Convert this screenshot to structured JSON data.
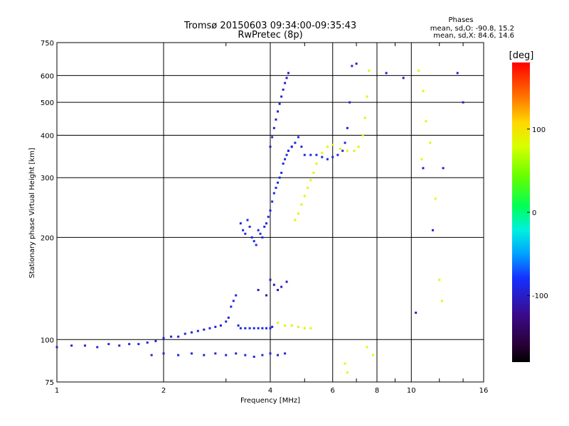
{
  "chart_data": {
    "type": "scatter",
    "title": "Tromsø 20150603 09:34:00-09:35:43",
    "subtitle": "RwPretec (8p)",
    "xlabel": "Frequency [MHz]",
    "ylabel": "Stationary phase Virtual Height [km]",
    "xscale": "log",
    "yscale": "log",
    "xlim": [
      1,
      16
    ],
    "ylim": [
      75,
      750
    ],
    "xticks": [
      1,
      2,
      4,
      6,
      8,
      10,
      16
    ],
    "xtick_labels": [
      "1",
      "2",
      "4",
      "6",
      "8",
      "10",
      "16"
    ],
    "yticks": [
      75,
      100,
      200,
      300,
      400,
      500,
      600,
      750
    ],
    "ytick_labels": [
      "75",
      "100",
      "200",
      "300",
      "400",
      "500",
      "600",
      "750"
    ],
    "grid": true,
    "stats": {
      "title": "Phases",
      "line_o": "mean, sd,O: -90.8, 15.2",
      "line_x": "mean, sd,X:  84.6, 14.6"
    },
    "colorbar": {
      "label": "[deg]",
      "range": [
        -180,
        180
      ],
      "ticks": [
        100,
        0,
        -100
      ],
      "tick_labels": [
        "100",
        "0",
        "-100"
      ]
    },
    "series": [
      {
        "name": "",
        "phase_deg": -95,
        "x": [
          1.0,
          1.1,
          1.2,
          1.3,
          1.4,
          1.5,
          1.6,
          1.7,
          1.8,
          1.9,
          2.0,
          2.1,
          2.2,
          2.3,
          2.4,
          2.5,
          2.6,
          2.7,
          2.8,
          2.9,
          3.0,
          3.05
        ],
        "y": [
          95,
          96,
          96,
          95,
          97,
          96,
          97,
          97,
          98,
          99,
          101,
          102,
          102,
          104,
          105,
          106,
          107,
          108,
          109,
          110,
          113,
          116
        ]
      },
      {
        "name": "",
        "phase_deg": -90,
        "x": [
          3.1,
          3.15,
          3.2,
          3.25,
          3.3,
          3.4,
          3.5,
          3.6,
          3.7,
          3.8,
          3.9,
          4.0,
          4.05
        ],
        "y": [
          125,
          130,
          135,
          110,
          108,
          108,
          108,
          108,
          108,
          108,
          108,
          108,
          109
        ]
      },
      {
        "name": "",
        "phase_deg": -90,
        "x": [
          3.3,
          3.35,
          3.4,
          3.45,
          3.5,
          3.55,
          3.6,
          3.65,
          3.7,
          3.75,
          3.8,
          3.85,
          3.9,
          3.95,
          4.0,
          4.05,
          4.1,
          4.15,
          4.2,
          4.25,
          4.3,
          4.35,
          4.4,
          4.45,
          4.5,
          4.6
        ],
        "y": [
          220,
          210,
          205,
          225,
          215,
          200,
          195,
          190,
          210,
          205,
          200,
          215,
          220,
          230,
          240,
          255,
          270,
          280,
          290,
          300,
          310,
          330,
          340,
          350,
          360,
          370
        ]
      },
      {
        "name": "",
        "phase_deg": -100,
        "x": [
          4.0,
          4.05,
          4.1,
          4.15,
          4.2,
          4.25,
          4.3,
          4.35,
          4.4,
          4.45,
          4.5
        ],
        "y": [
          370,
          395,
          420,
          445,
          470,
          495,
          520,
          545,
          570,
          590,
          610
        ]
      },
      {
        "name": "",
        "phase_deg": -92,
        "x": [
          4.5,
          4.6,
          4.7,
          4.8,
          4.9,
          5.0,
          5.2,
          5.4,
          5.6,
          5.8,
          6.0,
          6.2,
          6.4,
          6.5,
          6.6,
          6.7,
          6.8
        ],
        "y": [
          360,
          370,
          380,
          395,
          370,
          350,
          350,
          350,
          345,
          340,
          345,
          350,
          360,
          380,
          420,
          500,
          640
        ]
      },
      {
        "name": "",
        "phase_deg": 88,
        "x": [
          4.7,
          4.8,
          4.9,
          5.0,
          5.1,
          5.2,
          5.3,
          5.4,
          5.6,
          5.8,
          6.0,
          6.3,
          6.6,
          6.9,
          7.1,
          7.3,
          7.4,
          7.5,
          7.6
        ],
        "y": [
          225,
          235,
          250,
          265,
          280,
          295,
          310,
          330,
          355,
          370,
          375,
          365,
          360,
          360,
          370,
          400,
          450,
          520,
          620
        ]
      },
      {
        "name": "",
        "phase_deg": 88,
        "x": [
          4.2,
          4.4,
          4.6,
          4.8,
          5.0,
          5.2
        ],
        "y": [
          112,
          110,
          110,
          109,
          108,
          108
        ]
      },
      {
        "name": "",
        "phase_deg": -95,
        "x": [
          1.85,
          2.0,
          2.2,
          2.4,
          2.6,
          2.8,
          3.0,
          3.2,
          3.4,
          3.6,
          3.8,
          4.0,
          4.2,
          4.4
        ],
        "y": [
          90,
          91,
          90,
          91,
          90,
          91,
          90,
          91,
          90,
          89,
          90,
          91,
          90,
          91
        ]
      },
      {
        "name": "",
        "phase_deg": -110,
        "x": [
          3.7,
          3.9,
          4.0,
          4.1,
          4.2,
          4.3,
          4.45
        ],
        "y": [
          140,
          135,
          150,
          145,
          140,
          143,
          148
        ]
      },
      {
        "name": "",
        "phase_deg": 80,
        "x": [
          6.5,
          6.6,
          7.5,
          7.8,
          10.5,
          10.8,
          11.3,
          11.7,
          12.0,
          12.2,
          11.0,
          10.7
        ],
        "y": [
          85,
          80,
          95,
          90,
          620,
          540,
          380,
          260,
          150,
          130,
          440,
          340
        ]
      },
      {
        "name": "",
        "phase_deg": -100,
        "x": [
          7.0,
          8.5,
          9.5,
          10.3,
          10.8,
          11.5,
          12.3,
          13.5,
          14.0
        ],
        "y": [
          650,
          610,
          590,
          120,
          320,
          210,
          320,
          610,
          500
        ]
      }
    ]
  }
}
